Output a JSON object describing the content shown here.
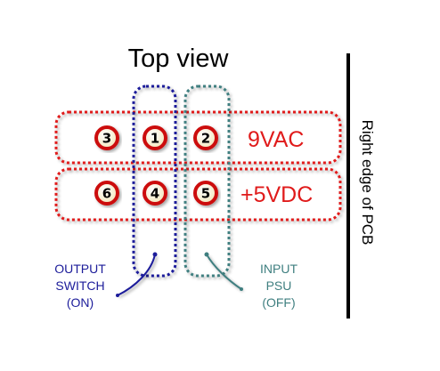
{
  "title": "Top view",
  "edge_label": "Right edge of PCB",
  "rows": [
    {
      "label": "9VAC",
      "pins": [
        "3",
        "1",
        "2"
      ]
    },
    {
      "label": "+5VDC",
      "pins": [
        "6",
        "4",
        "5"
      ]
    }
  ],
  "output_switch": {
    "lines": [
      "OUTPUT",
      "SWITCH",
      "(ON)"
    ],
    "color": "#1c1c9a"
  },
  "input_psu": {
    "lines": [
      "INPUT",
      "PSU",
      "(OFF)"
    ],
    "color": "#3f7f80"
  },
  "colors": {
    "row_outline": "#e01b1b",
    "row_label": "#e01b1b",
    "pin_ring": "#cc1111",
    "pin_fill": "#fff6d6",
    "edge_line": "#000000"
  }
}
